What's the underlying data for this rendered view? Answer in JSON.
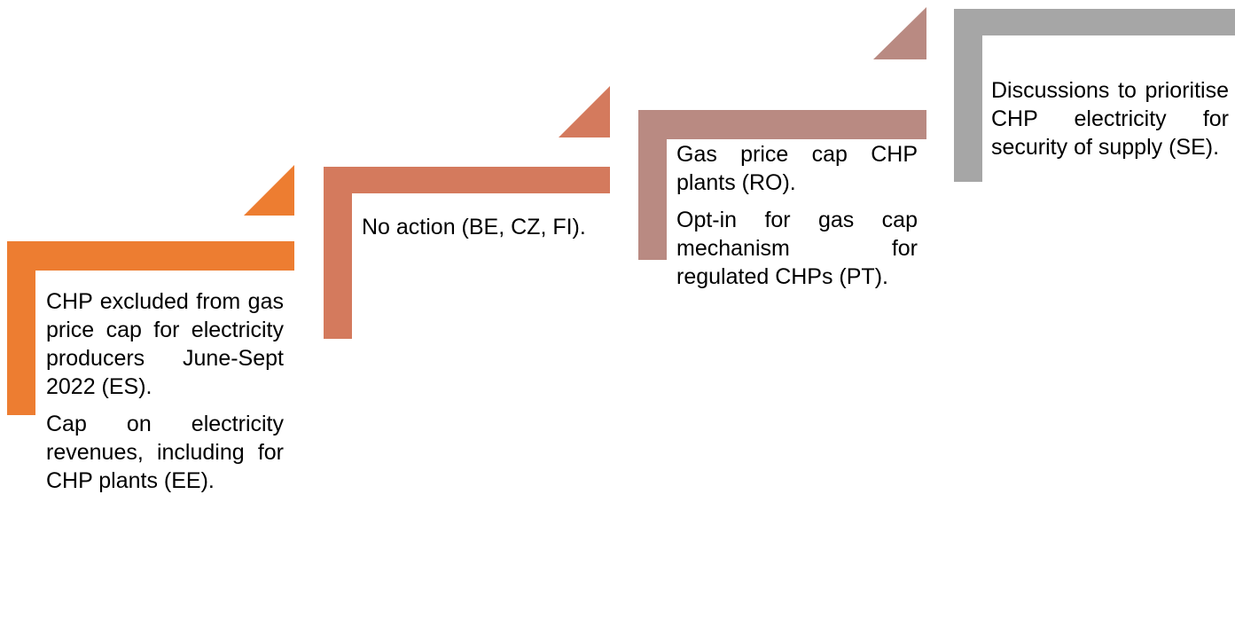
{
  "steps": [
    {
      "paragraphs": [
        "CHP excluded from gas price cap for electricity producers June-Sept 2022 (ES).",
        "Cap on electricity revenues, including for CHP plants (EE)."
      ]
    },
    {
      "paragraphs": [
        "No action (BE, CZ, FI)."
      ]
    },
    {
      "paragraphs": [
        "Gas price cap CHP plants (RO).",
        "Opt-in for gas cap mechanism for regulated CHPs (PT)."
      ]
    },
    {
      "paragraphs": [
        "Discussions to prioritise CHP electricity for security of supply (SE)."
      ]
    }
  ]
}
